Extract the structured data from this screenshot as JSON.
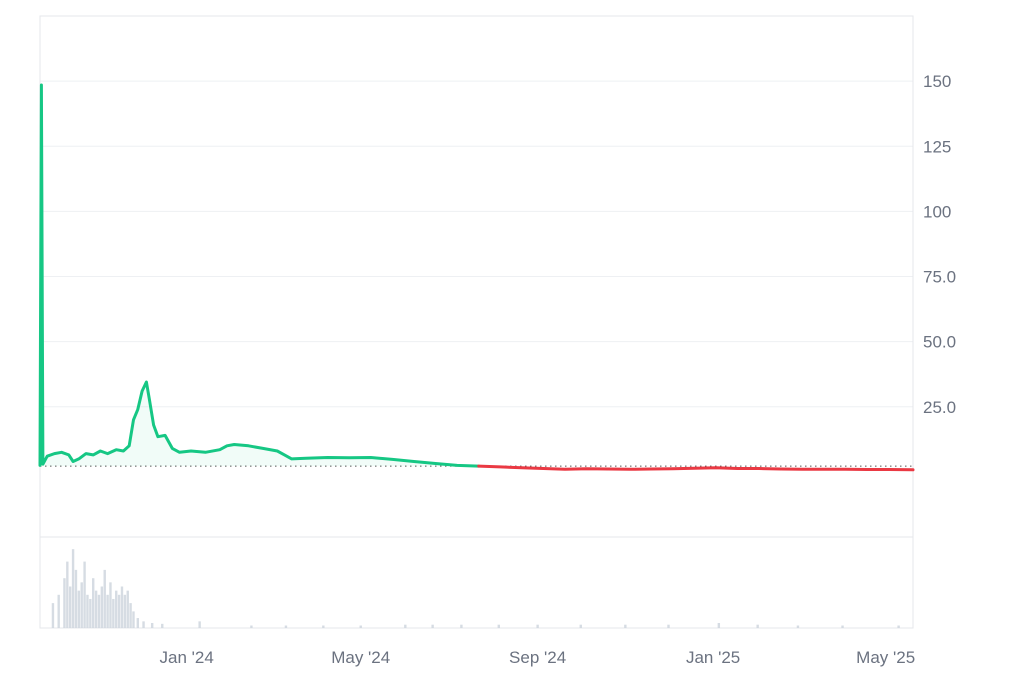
{
  "chart_data": {
    "type": "line",
    "title": "",
    "xlabel": "",
    "ylabel": "",
    "ylim": [
      -25,
      175
    ],
    "y_ticks": [
      "150",
      "125",
      "100",
      "75.0",
      "50.0",
      "25.0"
    ],
    "y_tick_values": [
      150,
      125,
      100,
      75,
      50,
      25
    ],
    "x_ticks": [
      "Jan '24",
      "May '24",
      "Sep '24",
      "Jan '25",
      "May '25"
    ],
    "x_tick_dates": [
      "2024-01-01",
      "2024-05-01",
      "2024-09-01",
      "2025-01-01",
      "2025-05-01"
    ],
    "x_range": [
      "2023-09-21",
      "2025-05-20"
    ],
    "baseline": 2.2,
    "grid": "horizontal",
    "colors": {
      "above": "#16c784",
      "below": "#ea3943",
      "volume": "#cfd6de"
    },
    "series": [
      {
        "points": [
          [
            "2023-09-21",
            2.5
          ],
          [
            "2023-09-22",
            148.5
          ],
          [
            "2023-09-23",
            3.0
          ],
          [
            "2023-09-26",
            6.0
          ],
          [
            "2023-10-01",
            7.0
          ],
          [
            "2023-10-06",
            7.5
          ],
          [
            "2023-10-11",
            6.5
          ],
          [
            "2023-10-14",
            4.0
          ],
          [
            "2023-10-18",
            5.0
          ],
          [
            "2023-10-23",
            7.0
          ],
          [
            "2023-10-28",
            6.5
          ],
          [
            "2023-11-02",
            8.0
          ],
          [
            "2023-11-07",
            7.0
          ],
          [
            "2023-11-13",
            8.5
          ],
          [
            "2023-11-18",
            8.0
          ],
          [
            "2023-11-22",
            10.0
          ],
          [
            "2023-11-25",
            20.0
          ],
          [
            "2023-11-28",
            24.0
          ],
          [
            "2023-12-01",
            31.0
          ],
          [
            "2023-12-04",
            34.5
          ],
          [
            "2023-12-06",
            28.0
          ],
          [
            "2023-12-09",
            18.0
          ],
          [
            "2023-12-12",
            13.5
          ],
          [
            "2023-12-17",
            14.0
          ],
          [
            "2023-12-22",
            9.0
          ],
          [
            "2023-12-27",
            7.5
          ],
          [
            "2024-01-04",
            8.0
          ],
          [
            "2024-01-14",
            7.5
          ],
          [
            "2024-01-24",
            8.5
          ],
          [
            "2024-01-29",
            10.0
          ],
          [
            "2024-02-03",
            10.5
          ],
          [
            "2024-02-13",
            10.0
          ],
          [
            "2024-02-23",
            9.0
          ],
          [
            "2024-03-04",
            8.0
          ],
          [
            "2024-03-09",
            6.5
          ],
          [
            "2024-03-14",
            5.0
          ],
          [
            "2024-03-24",
            5.2
          ],
          [
            "2024-04-08",
            5.5
          ],
          [
            "2024-04-23",
            5.4
          ],
          [
            "2024-05-08",
            5.5
          ],
          [
            "2024-05-23",
            4.8
          ],
          [
            "2024-06-07",
            4.0
          ],
          [
            "2024-06-22",
            3.2
          ],
          [
            "2024-07-07",
            2.5
          ],
          [
            "2024-07-22",
            2.2
          ],
          [
            "2024-08-06",
            1.9
          ],
          [
            "2024-08-21",
            1.6
          ],
          [
            "2024-09-05",
            1.3
          ],
          [
            "2024-09-20",
            1.0
          ],
          [
            "2024-10-05",
            1.2
          ],
          [
            "2024-10-20",
            1.1
          ],
          [
            "2024-11-04",
            1.0
          ],
          [
            "2024-11-19",
            1.1
          ],
          [
            "2024-12-04",
            1.2
          ],
          [
            "2024-12-19",
            1.4
          ],
          [
            "2025-01-03",
            1.6
          ],
          [
            "2025-01-18",
            1.3
          ],
          [
            "2025-02-02",
            1.3
          ],
          [
            "2025-02-17",
            1.1
          ],
          [
            "2025-03-04",
            1.0
          ],
          [
            "2025-03-19",
            1.0
          ],
          [
            "2025-04-03",
            1.0
          ],
          [
            "2025-04-18",
            0.9
          ],
          [
            "2025-05-03",
            0.9
          ],
          [
            "2025-05-20",
            0.8
          ]
        ]
      }
    ],
    "volume": [
      [
        "2023-09-30",
        0.3
      ],
      [
        "2023-10-04",
        0.4
      ],
      [
        "2023-10-08",
        0.6
      ],
      [
        "2023-10-10",
        0.8
      ],
      [
        "2023-10-12",
        0.5
      ],
      [
        "2023-10-14",
        0.95
      ],
      [
        "2023-10-16",
        0.7
      ],
      [
        "2023-10-18",
        0.45
      ],
      [
        "2023-10-20",
        0.55
      ],
      [
        "2023-10-22",
        0.8
      ],
      [
        "2023-10-24",
        0.4
      ],
      [
        "2023-10-26",
        0.35
      ],
      [
        "2023-10-28",
        0.6
      ],
      [
        "2023-10-30",
        0.45
      ],
      [
        "2023-11-01",
        0.4
      ],
      [
        "2023-11-03",
        0.5
      ],
      [
        "2023-11-05",
        0.7
      ],
      [
        "2023-11-07",
        0.4
      ],
      [
        "2023-11-09",
        0.55
      ],
      [
        "2023-11-11",
        0.35
      ],
      [
        "2023-11-13",
        0.45
      ],
      [
        "2023-11-15",
        0.4
      ],
      [
        "2023-11-17",
        0.5
      ],
      [
        "2023-11-19",
        0.4
      ],
      [
        "2023-11-21",
        0.45
      ],
      [
        "2023-11-23",
        0.3
      ],
      [
        "2023-11-25",
        0.2
      ],
      [
        "2023-11-28",
        0.12
      ],
      [
        "2023-12-02",
        0.08
      ],
      [
        "2023-12-08",
        0.06
      ],
      [
        "2023-12-15",
        0.05
      ],
      [
        "2024-01-10",
        0.08
      ],
      [
        "2024-02-15",
        0.03
      ],
      [
        "2024-03-10",
        0.03
      ],
      [
        "2024-04-05",
        0.03
      ],
      [
        "2024-05-01",
        0.03
      ],
      [
        "2024-06-01",
        0.04
      ],
      [
        "2024-06-20",
        0.04
      ],
      [
        "2024-07-10",
        0.04
      ],
      [
        "2024-08-05",
        0.04
      ],
      [
        "2024-09-01",
        0.04
      ],
      [
        "2024-10-01",
        0.04
      ],
      [
        "2024-11-01",
        0.04
      ],
      [
        "2024-12-01",
        0.04
      ],
      [
        "2025-01-05",
        0.06
      ],
      [
        "2025-02-01",
        0.04
      ],
      [
        "2025-03-01",
        0.03
      ],
      [
        "2025-04-01",
        0.03
      ],
      [
        "2025-05-10",
        0.03
      ]
    ]
  }
}
